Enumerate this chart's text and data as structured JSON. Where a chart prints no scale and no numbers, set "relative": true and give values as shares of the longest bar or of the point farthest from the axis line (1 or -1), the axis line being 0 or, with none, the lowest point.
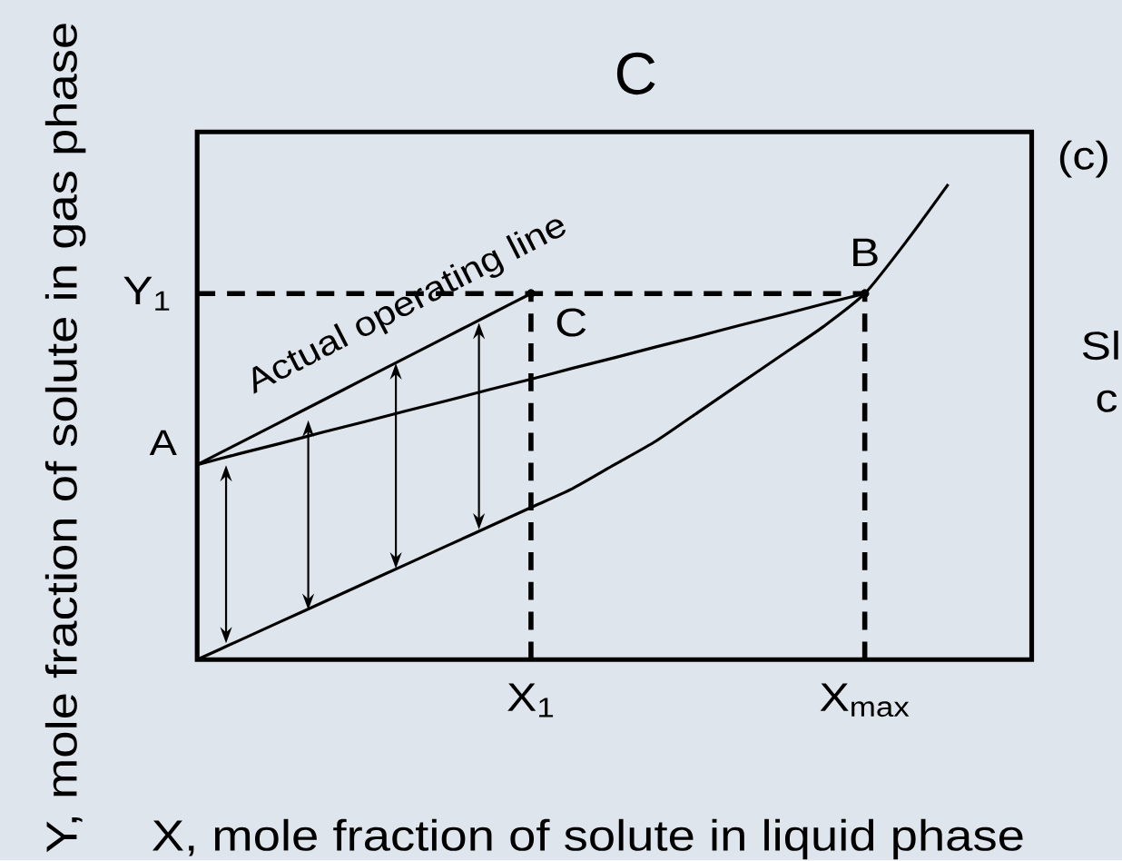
{
  "chart_data": {
    "type": "line",
    "title": "C",
    "xlabel": "X, mole fraction of solute in liquid phase",
    "ylabel": "Y, mole fraction of solute in gas phase",
    "relative": true,
    "categories": [
      null,
      null,
      null,
      null,
      null,
      null,
      null,
      null,
      "X$_{1}$",
      null,
      null,
      null,
      null,
      null,
      null,
      null,
      "X$_{max}$",
      null,
      null,
      null,
      null
    ],
    "series": [
      {
        "color": "#000000",
        "values": [
          0,
          0.04,
          0.08,
          0.12,
          0.16,
          0.2,
          0.24,
          0.28,
          0.32,
          0.36,
          0.41,
          0.46,
          0.52,
          0.58,
          0.64,
          0.7,
          0.77,
          0.88,
          1,
          null,
          null
        ]
      },
      {
        "color": "#000000",
        "values": [
          0.41,
          0.433,
          0.455,
          0.478,
          0.5,
          0.523,
          0.545,
          0.568,
          0.59,
          0.613,
          0.635,
          0.658,
          0.68,
          0.703,
          0.725,
          0.748,
          0.77,
          null,
          null,
          null,
          null
        ]
      },
      {
        "name": "Actual operating line",
        "color": "#000000",
        "values": [
          0.41,
          0.455,
          0.5,
          0.545,
          0.59,
          0.635,
          0.68,
          0.725,
          0.77,
          null,
          null,
          null,
          null,
          null,
          null,
          null,
          null,
          null,
          null,
          null,
          null
        ]
      },
      {
        "color": "#000000",
        "line_style": "dashed",
        "values": [
          0.77,
          0.77,
          0.77,
          0.77,
          0.77,
          0.77,
          0.77,
          0.77,
          0.77,
          0.77,
          0.77,
          0.77,
          0.77,
          0.77,
          0.77,
          0.77,
          0.77,
          null,
          null,
          null,
          null
        ]
      },
      {
        "type": "lollipop",
        "color": "#000000",
        "line_style": "dashed",
        "marker": "circle",
        "values": [
          null,
          null,
          null,
          null,
          null,
          null,
          null,
          null,
          0.77,
          null,
          null,
          null,
          null,
          null,
          null,
          null,
          0.77,
          null,
          null,
          null,
          null
        ]
      }
    ],
    "annotations": [
      "Y$_{1}$",
      "A",
      {
        "text": "B",
        "x": "X$_{max}$",
        "y": 0.77
      },
      {
        "text": "C",
        "x": "X$_{1}$",
        "y": 0.77
      },
      "(c)",
      "Sl",
      "c"
    ]
  }
}
